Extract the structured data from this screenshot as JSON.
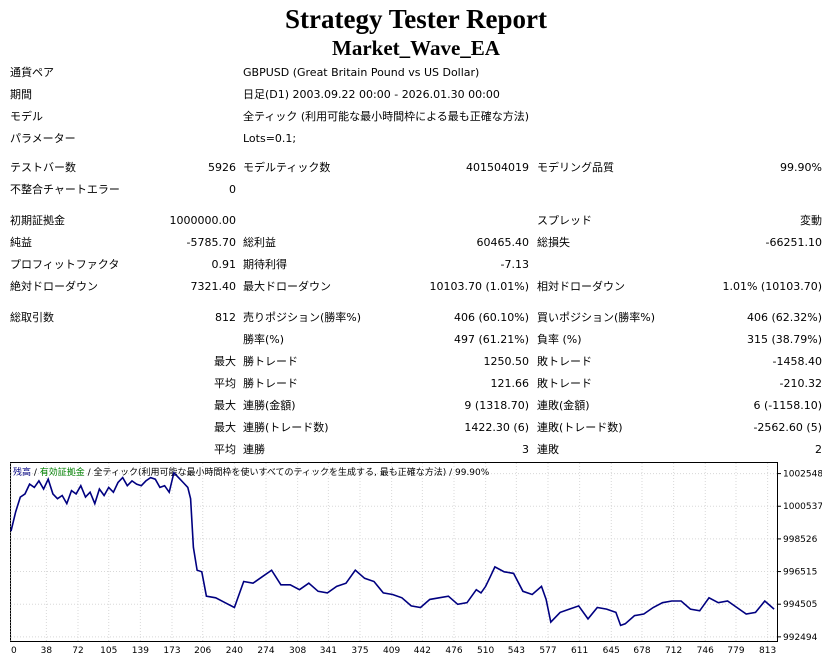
{
  "report": {
    "title": "Strategy Tester Report",
    "ea_name": "Market_Wave_EA"
  },
  "info": {
    "symbol_label": "通貨ペア",
    "symbol_value": "GBPUSD (Great Britain Pound vs US Dollar)",
    "period_label": "期間",
    "period_value": "日足(D1) 2003.09.22 00:00 - 2026.01.30 00:00",
    "model_label": "モデル",
    "model_value": "全ティック (利用可能な最小時間枠による最も正確な方法)",
    "params_label": "パラメーター",
    "params_value": "Lots=0.1;"
  },
  "stats": {
    "bars_label": "テストバー数",
    "bars_value": "5926",
    "ticks_label": "モデルティック数",
    "ticks_value": "401504019",
    "quality_label": "モデリング品質",
    "quality_value": "99.90%",
    "mismatch_label": "不整合チャートエラー",
    "mismatch_value": "0",
    "deposit_label": "初期証拠金",
    "deposit_value": "1000000.00",
    "spread_label": "スプレッド",
    "spread_value": "変動",
    "netprofit_label": "純益",
    "netprofit_value": "-5785.70",
    "grossprofit_label": "総利益",
    "grossprofit_value": "60465.40",
    "grossloss_label": "総損失",
    "grossloss_value": "-66251.10",
    "pf_label": "プロフィットファクタ",
    "pf_value": "0.91",
    "payoff_label": "期待利得",
    "payoff_value": "-7.13",
    "absdd_label": "絶対ドローダウン",
    "absdd_value": "7321.40",
    "maxdd_label": "最大ドローダウン",
    "maxdd_value": "10103.70 (1.01%)",
    "reldd_label": "相対ドローダウン",
    "reldd_value": "1.01% (10103.70)",
    "trades_label": "総取引数",
    "trades_value": "812",
    "short_label": "売りポジション(勝率%)",
    "short_value": "406 (60.10%)",
    "long_label": "買いポジション(勝率%)",
    "long_value": "406 (62.32%)",
    "profit_trades_label": "勝率(%)",
    "profit_trades_value": "497 (61.21%)",
    "loss_trades_label": "負率 (%)",
    "loss_trades_value": "315 (38.79%)",
    "max_word": "最大",
    "avg_word": "平均",
    "largest_profit_label": "勝トレード",
    "largest_profit_value": "1250.50",
    "largest_loss_label": "敗トレード",
    "largest_loss_value": "-1458.40",
    "avg_profit_label": "勝トレード",
    "avg_profit_value": "121.66",
    "avg_loss_label": "敗トレード",
    "avg_loss_value": "-210.32",
    "max_cons_wins_label": "連勝(金額)",
    "max_cons_wins_value": "9 (1318.70)",
    "max_cons_losses_label": "連敗(金額)",
    "max_cons_losses_value": "6 (-1158.10)",
    "max_cons_profit_label": "連勝(トレード数)",
    "max_cons_profit_value": "1422.30 (6)",
    "max_cons_loss_label": "連敗(トレード数)",
    "max_cons_loss_value": "-2562.60 (5)",
    "avg_cons_wins_label": "連勝",
    "avg_cons_wins_value": "3",
    "avg_cons_losses_label": "連敗",
    "avg_cons_losses_value": "2"
  },
  "chart_data": {
    "type": "line",
    "legend": [
      {
        "text": "残高",
        "color": "#000080"
      },
      {
        "text": " / ",
        "color": "#000000"
      },
      {
        "text": "有効証拠金",
        "color": "#008000"
      },
      {
        "text": " / 全ティック(利用可能な最小時間枠を使いすべてのティックを生成する, 最も正確な方法) ",
        "color": "#000000"
      },
      {
        "text": "/ 99.90%",
        "color": "#000000"
      }
    ],
    "x_ticks": [
      0,
      38,
      72,
      105,
      139,
      173,
      206,
      240,
      274,
      308,
      341,
      375,
      409,
      442,
      476,
      510,
      543,
      577,
      611,
      645,
      678,
      712,
      746,
      779,
      813
    ],
    "y_ticks": [
      992494,
      994505,
      996515,
      998526,
      1000537,
      1002548
    ],
    "xlim": [
      0,
      822
    ],
    "ylim": [
      992300,
      1003200
    ],
    "line_color": "#000080",
    "series": [
      {
        "x": [
          0,
          5,
          10,
          15,
          20,
          25,
          30,
          35,
          40,
          45,
          50,
          55,
          60,
          65,
          70,
          75,
          80,
          85,
          90,
          95,
          100,
          105,
          110,
          115,
          120,
          125,
          130,
          135,
          140,
          145,
          150,
          155,
          160,
          165,
          170,
          175,
          180,
          185,
          190,
          193,
          196,
          200,
          205,
          210,
          220,
          230,
          240,
          250,
          260,
          270,
          280,
          290,
          300,
          310,
          320,
          330,
          340,
          350,
          360,
          370,
          380,
          390,
          400,
          410,
          420,
          430,
          440,
          450,
          460,
          470,
          480,
          490,
          500,
          505,
          510,
          515,
          520,
          530,
          540,
          550,
          560,
          570,
          575,
          580,
          590,
          600,
          610,
          620,
          630,
          640,
          650,
          655,
          660,
          670,
          680,
          690,
          700,
          710,
          720,
          730,
          740,
          750,
          760,
          770,
          780,
          790,
          800,
          810,
          820
        ],
        "y": [
          999000,
          1000200,
          1001100,
          1001300,
          1001900,
          1001700,
          1002100,
          1001600,
          1002200,
          1001300,
          1001000,
          1001200,
          1000700,
          1001500,
          1001300,
          1001800,
          1001100,
          1001400,
          1000700,
          1001600,
          1001200,
          1001700,
          1001400,
          1002000,
          1002300,
          1001800,
          1002100,
          1001900,
          1001800,
          1002100,
          1002300,
          1002200,
          1001700,
          1001800,
          1001400,
          1002600,
          1002300,
          1002000,
          1001700,
          1001000,
          998000,
          996600,
          996500,
          995000,
          994900,
          994600,
          994300,
          995900,
          995800,
          996200,
          996600,
          995700,
          995700,
          995400,
          995800,
          995300,
          995200,
          995600,
          995800,
          996600,
          996100,
          995900,
          995200,
          995100,
          994900,
          994400,
          994300,
          994800,
          994900,
          995000,
          994500,
          994600,
          995400,
          995200,
          995600,
          996200,
          996800,
          996500,
          996400,
          995300,
          995100,
          995600,
          994800,
          993400,
          994000,
          994200,
          994400,
          993600,
          994300,
          994200,
          994000,
          993200,
          993300,
          993800,
          993900,
          994300,
          994600,
          994700,
          994700,
          994200,
          994100,
          994900,
          994600,
          994700,
          994300,
          993900,
          994000,
          994700,
          994200
        ]
      }
    ]
  }
}
